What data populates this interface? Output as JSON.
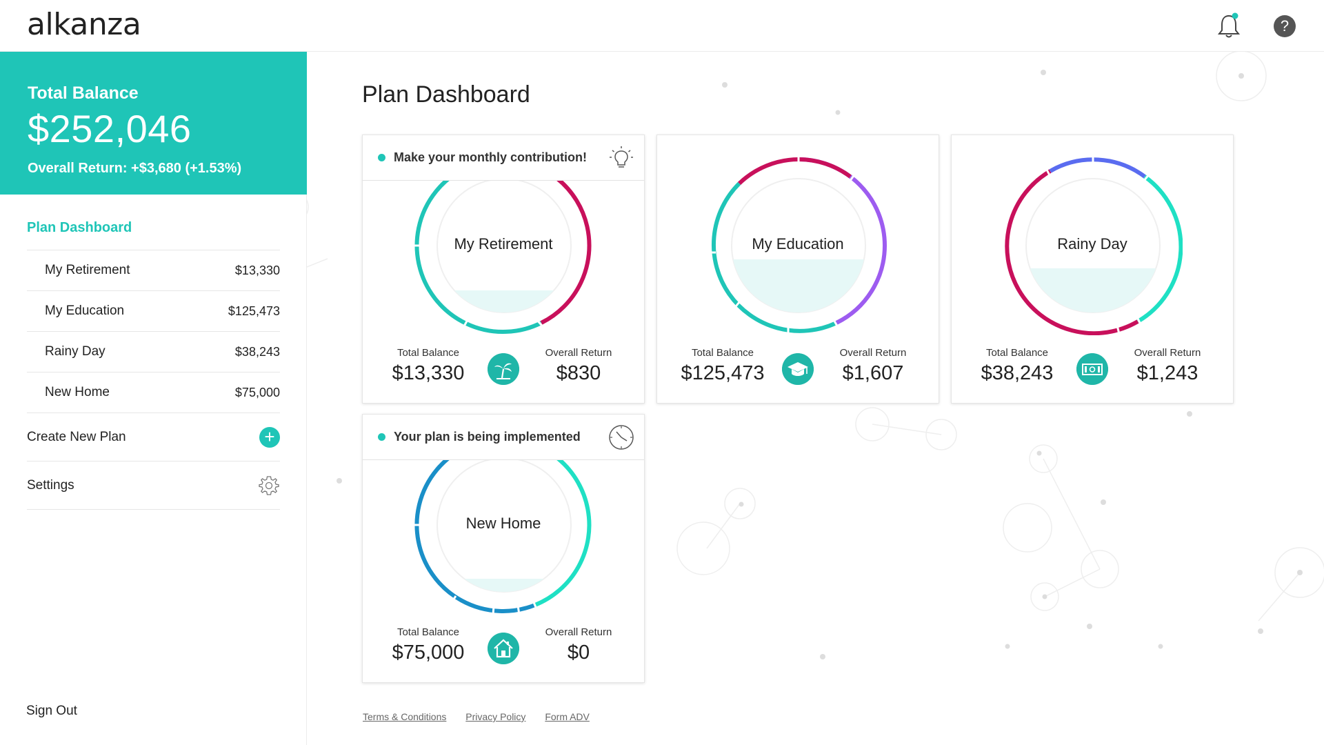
{
  "header": {
    "logo": "alkanza",
    "notification_dot_color": "#1fc5b7"
  },
  "sidebar": {
    "total_balance_label": "Total Balance",
    "total_balance_value": "$252,046",
    "overall_return": "Overall Return: +$3,680 (+1.53%)",
    "nav_title": "Plan Dashboard",
    "plans": [
      {
        "name": "My Retirement",
        "value": "$13,330"
      },
      {
        "name": "My Education",
        "value": "$125,473"
      },
      {
        "name": "Rainy Day",
        "value": "$38,243"
      },
      {
        "name": "New Home",
        "value": "$75,000"
      }
    ],
    "create_label": "Create New Plan",
    "settings_label": "Settings",
    "signout_label": "Sign Out"
  },
  "main": {
    "title": "Plan Dashboard",
    "cards": [
      {
        "name": "My Retirement",
        "notice": "Make your monthly contribution!",
        "notice_icon": "lightbulb-icon",
        "balance_label": "Total Balance",
        "balance": "$13,330",
        "return_label": "Overall Return",
        "return": "$830",
        "icon": "palm-tree-icon",
        "fill_fraction": 0.18,
        "ring_colors": [
          "#1fc5b7",
          "#c8105b"
        ]
      },
      {
        "name": "My Education",
        "balance_label": "Total Balance",
        "balance": "$125,473",
        "return_label": "Overall Return",
        "return": "$1,607",
        "icon": "graduation-cap-icon",
        "fill_fraction": 0.4,
        "ring_colors": [
          "#1fc5b7",
          "#c8105b",
          "#9d5cf0"
        ]
      },
      {
        "name": "Rainy Day",
        "balance_label": "Total Balance",
        "balance": "$38,243",
        "return_label": "Overall Return",
        "return": "$1,243",
        "icon": "money-icon",
        "fill_fraction": 0.32,
        "ring_colors": [
          "#c8105b",
          "#5a6cf0",
          "#1fe0c4"
        ]
      },
      {
        "name": "New Home",
        "notice": "Your plan is being implemented",
        "notice_icon": "clock-icon",
        "balance_label": "Total Balance",
        "balance": "$75,000",
        "return_label": "Overall Return",
        "return": "$0",
        "icon": "house-icon",
        "fill_fraction": 0.12,
        "ring_colors": [
          "#1a8fc8",
          "#1fe0c4"
        ]
      }
    ]
  },
  "footer": {
    "links": [
      "Terms & Conditions",
      "Privacy Policy",
      "Form ADV"
    ]
  }
}
